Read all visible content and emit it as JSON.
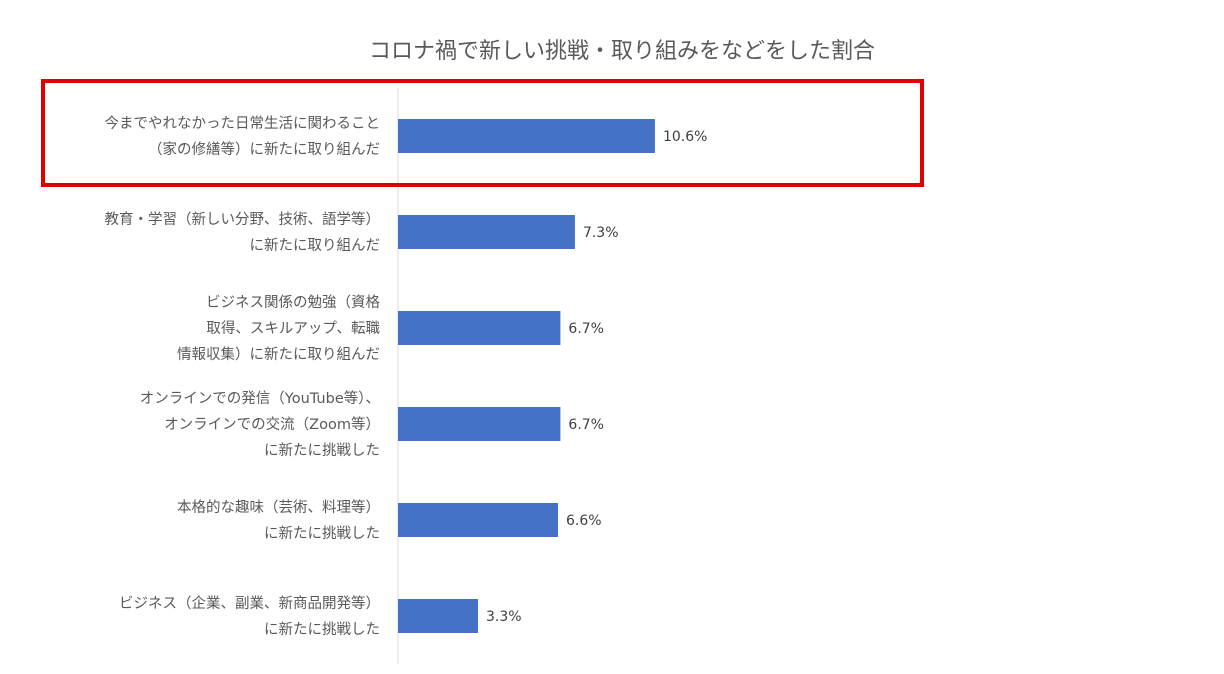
{
  "chart_data": {
    "type": "bar",
    "orientation": "horizontal",
    "title": "コロナ禍で新しい挑戦・取り組みをなどをした割合",
    "categories": [
      [
        "今までやれなかった日常生活に関わること",
        "（家の修繕等）に新たに取り組んだ"
      ],
      [
        "教育・学習（新しい分野、技術、語学等）",
        "に新たに取り組んだ"
      ],
      [
        "ビジネス関係の勉強（資格",
        "取得、スキルアップ、転職",
        "情報収集）に新たに取り組んだ"
      ],
      [
        "オンラインでの発信（YouTube等）、",
        "オンラインでの交流（Zoom等）",
        "に新たに挑戦した"
      ],
      [
        "本格的な趣味（芸術、料理等）",
        "に新たに挑戦した"
      ],
      [
        "ビジネス（企業、副業、新商品開発等）",
        "に新たに挑戦した"
      ]
    ],
    "values": [
      10.6,
      7.3,
      6.7,
      6.7,
      6.6,
      3.3
    ],
    "data_labels": [
      "10.6%",
      "7.3%",
      "6.7%",
      "6.7%",
      "6.6%",
      "3.3%"
    ],
    "xlim": [
      0,
      25
    ],
    "grid": false,
    "legend": "none",
    "bar_color": "#4472c4",
    "highlighted_category_index": 0,
    "highlight_color": "#e00000"
  }
}
